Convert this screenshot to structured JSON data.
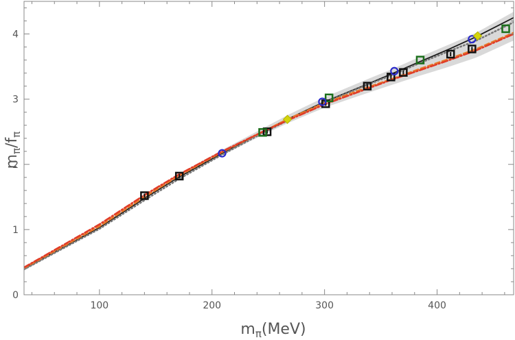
{
  "chart_data": {
    "type": "scatter",
    "title": "",
    "xlabel": {
      "base": "m",
      "sub": "π",
      "suffix": "(MeV)"
    },
    "ylabel": {
      "num": "m",
      "num_sub": "π",
      "slash": "/",
      "den": "f",
      "den_sub": "π"
    },
    "xlim": [
      33,
      468
    ],
    "ylim": [
      0,
      4.5
    ],
    "xticks": [
      100,
      200,
      300,
      400
    ],
    "yticks": [
      0,
      1,
      2,
      3,
      4
    ],
    "x_minor_step": 20,
    "y_minor_step": 0.2,
    "grid": false,
    "legend": "none",
    "band": {
      "color": "#d9d9d9",
      "center": [
        [
          33,
          0.4
        ],
        [
          100,
          1.04
        ],
        [
          140,
          1.49
        ],
        [
          170,
          1.81
        ],
        [
          208,
          2.17
        ],
        [
          245,
          2.5
        ],
        [
          268,
          2.7
        ],
        [
          300,
          2.95
        ],
        [
          338,
          3.2
        ],
        [
          360,
          3.34
        ],
        [
          384,
          3.5
        ],
        [
          411,
          3.67
        ],
        [
          435,
          3.83
        ],
        [
          468,
          4.12
        ]
      ],
      "halfwidth": [
        [
          33,
          0.03
        ],
        [
          140,
          0.03
        ],
        [
          245,
          0.05
        ],
        [
          300,
          0.08
        ],
        [
          360,
          0.12
        ],
        [
          411,
          0.17
        ],
        [
          468,
          0.22
        ]
      ]
    },
    "curves": [
      {
        "style": "solid",
        "color": "#1a1a1a",
        "points": [
          [
            33,
            0.4
          ],
          [
            100,
            1.03
          ],
          [
            140,
            1.48
          ],
          [
            170,
            1.8
          ],
          [
            208,
            2.16
          ],
          [
            245,
            2.5
          ],
          [
            268,
            2.7
          ],
          [
            300,
            2.96
          ],
          [
            338,
            3.23
          ],
          [
            360,
            3.39
          ],
          [
            384,
            3.57
          ],
          [
            411,
            3.77
          ],
          [
            435,
            3.96
          ],
          [
            468,
            4.25
          ]
        ]
      },
      {
        "style": "dotted",
        "color": "#777777",
        "points": [
          [
            33,
            0.39
          ],
          [
            100,
            1.01
          ],
          [
            140,
            1.45
          ],
          [
            170,
            1.77
          ],
          [
            208,
            2.14
          ],
          [
            245,
            2.48
          ],
          [
            268,
            2.68
          ],
          [
            300,
            2.95
          ],
          [
            338,
            3.22
          ],
          [
            360,
            3.37
          ],
          [
            384,
            3.55
          ],
          [
            411,
            3.74
          ],
          [
            435,
            3.9
          ],
          [
            468,
            4.18
          ]
        ]
      },
      {
        "style": "dashed",
        "color": "#e8792a",
        "points": [
          [
            33,
            0.41
          ],
          [
            100,
            1.05
          ],
          [
            140,
            1.5
          ],
          [
            170,
            1.82
          ],
          [
            208,
            2.18
          ],
          [
            245,
            2.5
          ],
          [
            268,
            2.7
          ],
          [
            300,
            2.94
          ],
          [
            338,
            3.18
          ],
          [
            360,
            3.31
          ],
          [
            384,
            3.46
          ],
          [
            411,
            3.62
          ],
          [
            435,
            3.77
          ],
          [
            468,
            4.02
          ]
        ]
      },
      {
        "style": "dashdot",
        "color": "#e03c28",
        "points": [
          [
            33,
            0.42
          ],
          [
            100,
            1.08
          ],
          [
            140,
            1.53
          ],
          [
            170,
            1.84
          ],
          [
            208,
            2.19
          ],
          [
            245,
            2.5
          ],
          [
            268,
            2.68
          ],
          [
            300,
            2.92
          ],
          [
            338,
            3.16
          ],
          [
            360,
            3.3
          ],
          [
            384,
            3.44
          ],
          [
            411,
            3.6
          ],
          [
            435,
            3.75
          ],
          [
            468,
            4.0
          ]
        ]
      }
    ],
    "series": [
      {
        "marker": "square-dot",
        "color": "#111111",
        "points": [
          [
            140,
            1.52
          ],
          [
            171,
            1.82
          ],
          [
            249,
            2.5
          ],
          [
            301,
            2.93
          ],
          [
            338,
            3.2
          ],
          [
            359,
            3.34
          ],
          [
            370,
            3.41
          ],
          [
            412,
            3.69
          ],
          [
            431,
            3.77
          ]
        ]
      },
      {
        "marker": "square",
        "color": "#1b6f1b",
        "points": [
          [
            245,
            2.49
          ],
          [
            304,
            3.02
          ],
          [
            385,
            3.6
          ],
          [
            461,
            4.08
          ]
        ]
      },
      {
        "marker": "circle",
        "color": "#2a2acc",
        "points": [
          [
            209,
            2.17
          ],
          [
            298,
            2.96
          ],
          [
            362,
            3.43
          ],
          [
            431,
            3.92
          ]
        ]
      },
      {
        "marker": "diamond",
        "color": "#d4d40c",
        "points": [
          [
            267,
            2.69
          ],
          [
            436,
            3.97
          ]
        ]
      }
    ]
  }
}
